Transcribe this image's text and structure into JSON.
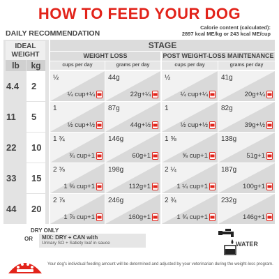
{
  "title": "HOW TO FEED YOUR DOG",
  "daily_recommendation": "DAILY RECOMMENDATION",
  "calorie_line1": "Calorie content (calculated):",
  "calorie_line2": "2897 kcal ME/kg or 243 kcal ME/cup",
  "ideal_weight": "IDEAL WEIGHT",
  "unit_lb": "lb",
  "unit_kg": "kg",
  "stage": "STAGE",
  "weight_loss": "WEIGHT LOSS",
  "post_maintenance": "POST WEIGHT-LOSS MAINTENANCE",
  "col_cups": "cups per day",
  "col_grams": "grams per day",
  "rows": [
    {
      "lb": "4.4",
      "kg": "2",
      "wl_cups_top": "½",
      "wl_cups_bot": "¼ cup+¼",
      "wl_g_top": "44g",
      "wl_g_bot": "22g+¼",
      "pm_cups_top": "½",
      "pm_cups_bot": "¼ cup+¼",
      "pm_g_top": "41g",
      "pm_g_bot": "20g+¼"
    },
    {
      "lb": "11",
      "kg": "5",
      "wl_cups_top": "1",
      "wl_cups_bot": "½ cup+½",
      "wl_g_top": "87g",
      "wl_g_bot": "44g+½",
      "pm_cups_top": "1",
      "pm_cups_bot": "½ cup+½",
      "pm_g_top": "82g",
      "pm_g_bot": "39g+½"
    },
    {
      "lb": "22",
      "kg": "10",
      "wl_cups_top": "1 ¾",
      "wl_cups_bot": "¾ cup+1",
      "wl_g_top": "146g",
      "wl_g_bot": "60g+1",
      "pm_cups_top": "1 ⅝",
      "pm_cups_bot": "⅝ cup+1",
      "pm_g_top": "138g",
      "pm_g_bot": "51g+1"
    },
    {
      "lb": "33",
      "kg": "15",
      "wl_cups_top": "2 ⅜",
      "wl_cups_bot": "1 ⅜ cup+1",
      "wl_g_top": "198g",
      "wl_g_bot": "112g+1",
      "pm_cups_top": "2 ¼",
      "pm_cups_bot": "1 ¼ cup+1",
      "pm_g_top": "187g",
      "pm_g_bot": "100g+1"
    },
    {
      "lb": "44",
      "kg": "20",
      "wl_cups_top": "2 ⅞",
      "wl_cups_bot": "1 ⅞ cup+1",
      "wl_g_top": "246g",
      "wl_g_bot": "160g+1",
      "pm_cups_top": "2 ¾",
      "pm_cups_bot": "1 ¾ cup+1",
      "pm_g_top": "232g",
      "pm_g_bot": "146g+1"
    }
  ],
  "dry_only": "DRY ONLY",
  "or": "OR",
  "mix_title": "MIX: DRY + CAN with",
  "mix_detail": "Urinary SO + Satiety loaf in sauce",
  "water": "WATER",
  "footnote": "Your dog's individual feeding amount will be determined and adjusted by your veterinarian during the weight-loss program.",
  "icons": {
    "can": "can-icon",
    "water": "water-faucet-icon",
    "logo": "royal-canin-logo"
  },
  "colors": {
    "title": "#e2231a",
    "can": "#e2231a",
    "cell": "#d9d9d9",
    "cell_light": "#f2f2f2"
  }
}
